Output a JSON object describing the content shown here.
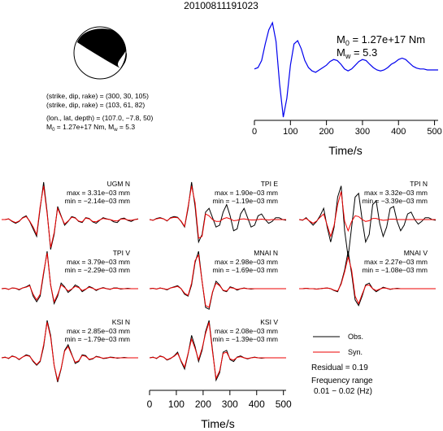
{
  "chart_data": {
    "type": "line",
    "title": "20100811191023",
    "mechanism": {
      "nodal_plane_1": "(strike, dip, rake) = (300, 30, 105)",
      "nodal_plane_2": "(strike, dip, rake) = (103, 61, 82)",
      "location": "(lon., lat, depth) = (107.0, −7.8, 50)",
      "moment_text": "M",
      "moment_sub": "0",
      "moment_value": " = 1.27e+17 Nm, M",
      "mw_sub": "w",
      "mw_value": " = 5.3"
    },
    "stf": {
      "m0_label": "M",
      "m0_sub": "0",
      "m0_value": " = 1.27e+17 Nm",
      "mw_label": "M",
      "mw_sub": "w",
      "mw_value": " = 5.3",
      "xlabel": "Time/s",
      "xlim": [
        0,
        510
      ],
      "xticks": [
        "0",
        "100",
        "200",
        "300",
        "400",
        "500"
      ],
      "color": "#0000ee",
      "x": [
        0,
        10,
        20,
        30,
        40,
        50,
        60,
        70,
        80,
        90,
        100,
        110,
        120,
        130,
        140,
        150,
        160,
        170,
        180,
        190,
        200,
        210,
        220,
        230,
        240,
        250,
        260,
        270,
        280,
        290,
        300,
        310,
        320,
        330,
        340,
        350,
        360,
        370,
        380,
        390,
        400,
        410,
        420,
        430,
        440,
        450,
        460,
        470,
        480,
        490,
        500,
        510
      ],
      "y": [
        0.02,
        0.05,
        0.2,
        0.55,
        0.85,
        1.0,
        0.6,
        -0.3,
        -1.0,
        -0.6,
        0.1,
        0.55,
        0.62,
        0.45,
        0.2,
        0.05,
        -0.02,
        -0.05,
        0.0,
        0.05,
        0.1,
        0.18,
        0.22,
        0.2,
        0.12,
        0.02,
        -0.02,
        0.02,
        0.1,
        0.18,
        0.22,
        0.2,
        0.12,
        0.05,
        0.0,
        -0.02,
        0.0,
        0.05,
        0.12,
        0.16,
        0.22,
        0.25,
        0.22,
        0.15,
        0.08,
        0.04,
        0.02,
        0.02,
        0.0,
        0.0,
        0.0,
        0.0
      ]
    },
    "waveforms": [
      {
        "station": "UGM N",
        "max": "max = 3.31e−03 mm",
        "min": "min = −2.14e−03 mm",
        "obs": [
          0,
          0,
          0.02,
          -0.05,
          -0.1,
          -0.05,
          0.05,
          0.1,
          -0.05,
          -0.25,
          -0.45,
          0.3,
          1.0,
          0.2,
          -0.8,
          -0.4,
          0.35,
          0.1,
          -0.15,
          -0.05,
          0.08,
          0.05,
          -0.05,
          -0.08,
          0.05,
          0.03,
          -0.06,
          -0.1,
          -0.02,
          0.05,
          0.02,
          0,
          -0.06,
          -0.08,
          0.02,
          0.04,
          -0.02,
          -0.05,
          0,
          0.02
        ],
        "syn": [
          0,
          0,
          0.02,
          -0.04,
          -0.08,
          -0.04,
          0.04,
          0.08,
          -0.04,
          -0.2,
          -0.4,
          0.35,
          0.9,
          0.15,
          -0.75,
          -0.35,
          0.3,
          0.08,
          -0.12,
          -0.04,
          0.06,
          0.04,
          -0.04,
          -0.06,
          0.04,
          0.02,
          -0.05,
          -0.06,
          -0.01,
          0.03,
          0.01,
          0,
          -0.03,
          -0.04,
          0.01,
          0.02,
          -0.01,
          -0.02,
          0,
          0.01
        ]
      },
      {
        "station": "TPI E",
        "max": "max = 1.90e−03 mm",
        "min": "min = −1.19e−03 mm",
        "obs": [
          0,
          -0.02,
          0.03,
          0.05,
          0.02,
          -0.04,
          0.05,
          0.08,
          0.06,
          -0.05,
          -0.2,
          0.3,
          1.0,
          0.35,
          -0.6,
          -0.4,
          0.2,
          0.3,
          0.05,
          -0.2,
          -0.15,
          0.2,
          0.4,
          0.1,
          -0.3,
          -0.25,
          0.15,
          0.3,
          0.05,
          -0.2,
          -0.15,
          0.1,
          0.15,
          0,
          -0.1,
          -0.05,
          0.05,
          0.05,
          0,
          -0.02
        ],
        "syn": [
          0,
          -0.02,
          0.02,
          0.04,
          0.02,
          -0.03,
          0.04,
          0.06,
          0.05,
          -0.04,
          -0.18,
          0.35,
          0.9,
          0.45,
          -0.5,
          -0.45,
          0.15,
          0.1,
          0,
          -0.05,
          -0.05,
          0.02,
          0.05,
          0.02,
          -0.03,
          -0.02,
          0.01,
          0.02,
          0,
          -0.01,
          -0.01,
          0,
          0.01,
          0,
          -0.01,
          0,
          0,
          0,
          0,
          0
        ]
      },
      {
        "station": "TPI N",
        "max": "max = 3.32e−03 mm",
        "min": "min = −3.39e−03 mm",
        "obs": [
          0,
          -0.02,
          0.05,
          -0.05,
          -0.15,
          -0.05,
          0.1,
          0.3,
          -0.2,
          -0.6,
          -0.2,
          0.6,
          0.9,
          -0.3,
          -1.0,
          -0.2,
          0.6,
          0.7,
          0,
          -0.6,
          -0.4,
          0.4,
          0.5,
          -0.1,
          -0.45,
          -0.2,
          0.3,
          0.35,
          -0.05,
          -0.3,
          -0.15,
          0.15,
          0.2,
          0,
          -0.12,
          -0.05,
          0.05,
          0.05,
          0,
          -0.02
        ],
        "syn": [
          0,
          -0.01,
          0.03,
          -0.04,
          -0.1,
          -0.04,
          0.06,
          0.15,
          -0.15,
          -0.45,
          -0.15,
          0.4,
          0.75,
          -0.05,
          -0.3,
          -0.05,
          0.1,
          0.08,
          0,
          -0.05,
          -0.03,
          0.03,
          0.03,
          0,
          -0.02,
          -0.01,
          0.01,
          0.01,
          0,
          0,
          0,
          0,
          0,
          0,
          0,
          0,
          0,
          0,
          0,
          0
        ]
      },
      {
        "station": "TPI V",
        "max": "max = 3.79e−03 mm",
        "min": "min = −2.29e−03 mm",
        "obs": [
          0,
          0.01,
          -0.02,
          0.02,
          0.01,
          -0.03,
          0.02,
          0.05,
          0.1,
          -0.2,
          -0.35,
          -0.2,
          0.4,
          1.0,
          0.1,
          -0.4,
          -0.2,
          0.15,
          0.05,
          -0.1,
          -0.02,
          0.1,
          0.05,
          -0.08,
          -0.02,
          0.06,
          0.02,
          -0.05,
          0,
          0.03,
          0,
          -0.02,
          0.02,
          0.02,
          -0.01,
          0,
          0.01,
          0,
          0,
          0
        ],
        "syn": [
          0,
          0.01,
          -0.02,
          0.02,
          0.01,
          -0.02,
          0.02,
          0.04,
          0.08,
          -0.15,
          -0.3,
          -0.15,
          0.45,
          0.95,
          0.1,
          -0.35,
          -0.15,
          0.1,
          0.03,
          -0.06,
          -0.01,
          0.06,
          0.03,
          -0.05,
          -0.01,
          0.04,
          0.01,
          -0.03,
          0,
          0.02,
          0,
          -0.01,
          0.01,
          0.01,
          0,
          0,
          0,
          0,
          0,
          0
        ]
      },
      {
        "station": "MNAI N",
        "max": "max = 2.98e−03 mm",
        "min": "min = −1.69e−03 mm",
        "obs": [
          0,
          0.01,
          -0.01,
          0.02,
          0,
          -0.03,
          0.02,
          0.05,
          0.08,
          0,
          -0.15,
          -0.2,
          0.1,
          0.7,
          1.0,
          0.2,
          -0.5,
          -0.55,
          -0.1,
          0.2,
          0.1,
          -0.05,
          -0.08,
          0.05,
          0.02,
          -0.04,
          0,
          0.02,
          0,
          -0.01,
          0,
          0,
          0,
          0,
          0,
          0,
          0,
          0,
          0,
          0
        ],
        "syn": [
          0,
          0.01,
          -0.01,
          0.02,
          0,
          -0.02,
          0.02,
          0.04,
          0.06,
          0,
          -0.12,
          -0.18,
          0.15,
          0.75,
          0.9,
          0.2,
          -0.45,
          -0.5,
          -0.08,
          0.15,
          0.08,
          -0.04,
          -0.06,
          0.03,
          0.01,
          -0.02,
          0,
          0.01,
          0,
          0,
          0,
          0,
          0,
          0,
          0,
          0,
          0,
          0,
          0,
          0
        ]
      },
      {
        "station": "MNAI V",
        "max": "max = 2.27e−03 mm",
        "min": "min = −1.08e−03 mm",
        "obs": [
          0,
          0,
          0.01,
          0,
          0,
          -0.01,
          0,
          0.01,
          0.02,
          0,
          -0.05,
          -0.08,
          0.15,
          0.5,
          1.0,
          0.4,
          -0.3,
          -0.45,
          -0.2,
          0.1,
          0.15,
          0,
          -0.08,
          -0.02,
          0.04,
          0.01,
          -0.02,
          0,
          0.01,
          0,
          0,
          0,
          0,
          0,
          0,
          0,
          0,
          0,
          0,
          0
        ],
        "syn": [
          0,
          0,
          0.01,
          0,
          0,
          -0.01,
          0,
          0.01,
          0.02,
          0,
          -0.04,
          -0.06,
          0.12,
          0.45,
          0.85,
          0.5,
          -0.2,
          -0.4,
          -0.15,
          0.08,
          0.1,
          0,
          -0.05,
          -0.01,
          0.02,
          0.01,
          -0.01,
          0,
          0,
          0,
          0,
          0,
          0,
          0,
          0,
          0,
          0,
          0,
          0,
          0
        ]
      },
      {
        "station": "KSI N",
        "max": "max = 2.85e−03 mm",
        "min": "min = −1.79e−03 mm",
        "obs": [
          0,
          0.02,
          -0.02,
          0.05,
          0.02,
          -0.05,
          0.02,
          0.08,
          0.05,
          -0.1,
          -0.2,
          -0.1,
          0.3,
          1.0,
          0.6,
          -0.2,
          -0.65,
          -0.3,
          0.2,
          0.35,
          0.1,
          -0.15,
          -0.1,
          0.08,
          0.06,
          -0.05,
          -0.03,
          0.04,
          0.02,
          -0.02,
          -0.01,
          0.02,
          0.01,
          -0.01,
          0,
          0.01,
          0,
          0,
          0,
          0
        ],
        "syn": [
          0,
          0.01,
          -0.01,
          0.04,
          0.02,
          -0.04,
          0.02,
          0.06,
          0.04,
          -0.08,
          -0.18,
          -0.08,
          0.35,
          0.95,
          0.55,
          -0.2,
          -0.6,
          -0.28,
          0.18,
          0.3,
          0.08,
          -0.12,
          -0.08,
          0.06,
          0.04,
          -0.04,
          -0.02,
          0.03,
          0.01,
          -0.01,
          0,
          0.01,
          0,
          0,
          0,
          0,
          0,
          0,
          0,
          0
        ]
      },
      {
        "station": "KSI V",
        "max": "max = 2.08e−03 mm",
        "min": "min = −1.39e−03 mm",
        "obs": [
          0,
          0.02,
          -0.02,
          0.05,
          0.02,
          -0.06,
          -0.02,
          0.05,
          0.15,
          -0.1,
          -0.3,
          0.1,
          0.6,
          0.3,
          -0.1,
          0.2,
          0.7,
          1.0,
          0.2,
          -0.6,
          -0.4,
          0.15,
          0.2,
          -0.05,
          -0.1,
          0.02,
          0.05,
          0,
          -0.03,
          0,
          0.02,
          0,
          -0.01,
          0,
          0,
          0,
          0,
          0,
          0,
          0
        ],
        "syn": [
          0,
          0.01,
          -0.01,
          0.04,
          0.02,
          -0.05,
          -0.01,
          0.04,
          0.12,
          -0.08,
          -0.25,
          0.12,
          0.5,
          0.25,
          -0.05,
          0.25,
          0.65,
          0.95,
          0.15,
          -0.55,
          -0.35,
          0.12,
          0.15,
          -0.03,
          -0.06,
          0.01,
          0.03,
          0,
          -0.02,
          0,
          0.01,
          0,
          0,
          0,
          0,
          0,
          0,
          0,
          0,
          0
        ]
      }
    ],
    "legend": {
      "obs": "Obs.",
      "syn": "Syn.",
      "obs_color": "#000000",
      "syn_color": "#ee0000",
      "residual": "Residual = 0.19",
      "freq_label": "Frequency range",
      "freq_value": "0.01 − 0.02 (Hz)"
    },
    "bottom_axis": {
      "xlabel": "Time/s",
      "xticks": [
        "0",
        "100",
        "200",
        "300",
        "400",
        "500"
      ],
      "xlim": [
        0,
        510
      ]
    }
  }
}
